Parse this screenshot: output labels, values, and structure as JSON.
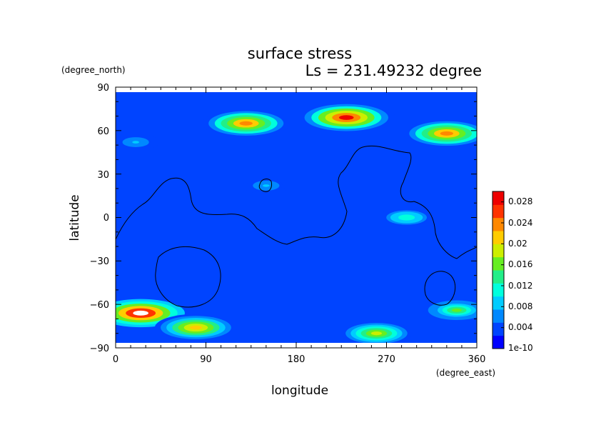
{
  "chart_data": {
    "type": "heatmap",
    "title": "surface stress",
    "subtitle": "Ls = 231.49232 degree",
    "xlabel": "longitude",
    "ylabel": "latitude",
    "x_unit": "(degree_east)",
    "y_unit": "(degree_north)",
    "xlim": [
      0,
      360
    ],
    "ylim": [
      -90,
      90
    ],
    "x_ticks": [
      0,
      90,
      180,
      270,
      360
    ],
    "y_ticks": [
      90,
      60,
      30,
      0,
      -30,
      -60,
      -90
    ],
    "y_tick_labels": [
      "90",
      "60",
      "30",
      "0",
      "−30",
      "−60",
      "−90"
    ],
    "colorbar": {
      "tick_labels": [
        "0.028",
        "0.024",
        "0.02",
        "0.016",
        "0.012",
        "0.008",
        "0.004",
        "1e-10"
      ],
      "tick_values": [
        0.028,
        0.024,
        0.02,
        0.016,
        0.012,
        0.008,
        0.004,
        1e-10
      ],
      "max": 0.03,
      "colors": [
        "#0000ff",
        "#0044ff",
        "#0088ff",
        "#00ccff",
        "#00ffdd",
        "#22ee88",
        "#66ee22",
        "#ccee00",
        "#ffcc00",
        "#ff8800",
        "#ff3300",
        "#ee0000"
      ]
    },
    "background_level": 0.003,
    "features": [
      {
        "lon": 130,
        "lat": 65,
        "value": 0.024
      },
      {
        "lon": 230,
        "lat": 69,
        "value": 0.028
      },
      {
        "lon": 330,
        "lat": 58,
        "value": 0.024
      },
      {
        "lon": 25,
        "lat": -66,
        "value": 0.03
      },
      {
        "lon": 80,
        "lat": -76,
        "value": 0.022
      },
      {
        "lon": 260,
        "lat": -80,
        "value": 0.018
      },
      {
        "lon": 290,
        "lat": 0,
        "value": 0.012
      },
      {
        "lon": 20,
        "lat": 52,
        "value": 0.008
      },
      {
        "lon": 150,
        "lat": 22,
        "value": 0.008
      },
      {
        "lon": 340,
        "lat": -64,
        "value": 0.016
      }
    ],
    "contour_lines": 4
  }
}
